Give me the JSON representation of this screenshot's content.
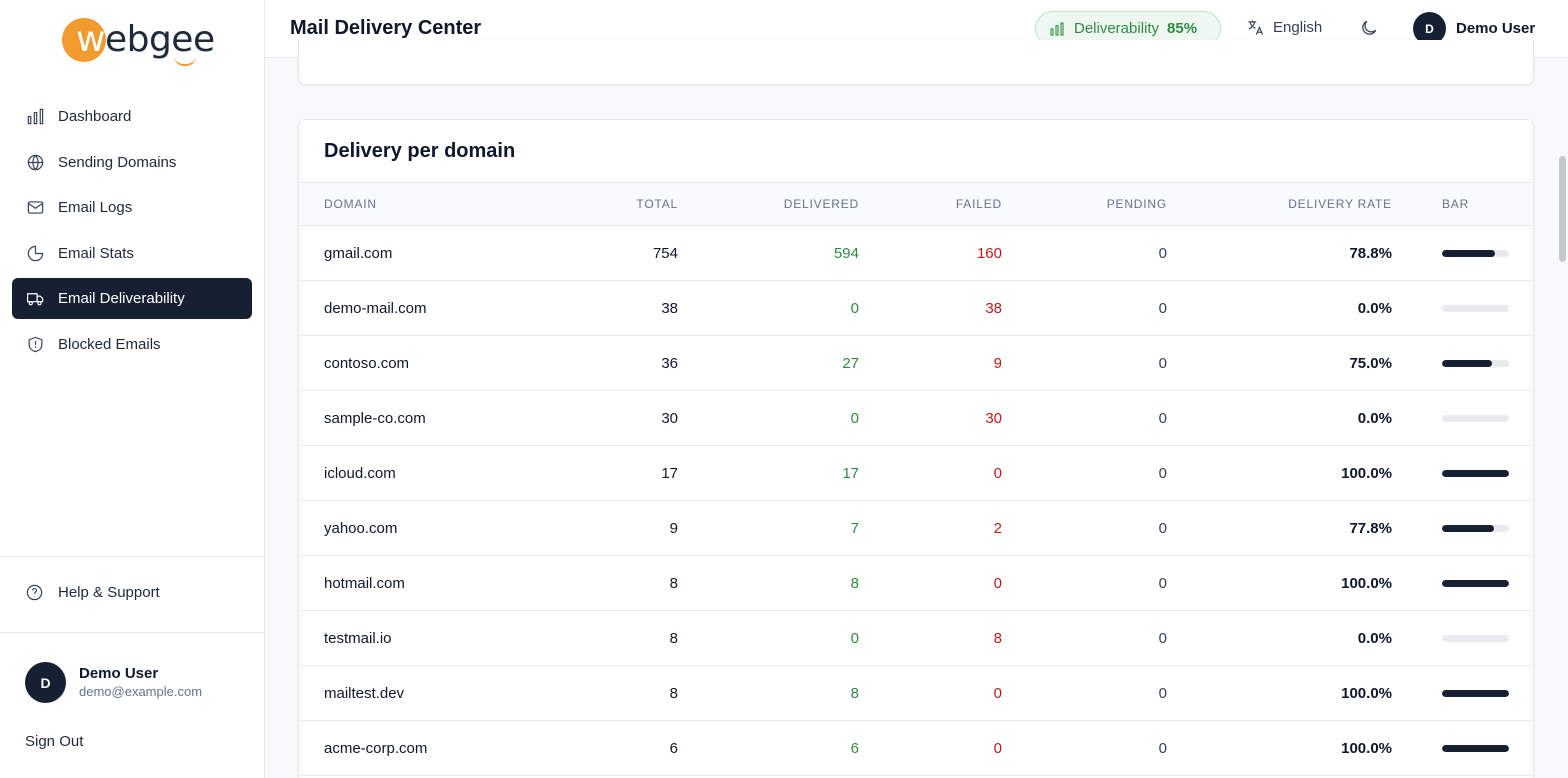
{
  "app": {
    "logo_text": "webgee",
    "title": "Mail Delivery Center"
  },
  "sidebar": {
    "items": [
      {
        "label": "Dashboard",
        "icon": "bar-chart-icon",
        "active": false
      },
      {
        "label": "Sending Domains",
        "icon": "globe-icon",
        "active": false
      },
      {
        "label": "Email Logs",
        "icon": "mail-icon",
        "active": false
      },
      {
        "label": "Email Stats",
        "icon": "pie-chart-icon",
        "active": false
      },
      {
        "label": "Email Deliverability",
        "icon": "truck-icon",
        "active": true
      },
      {
        "label": "Blocked Emails",
        "icon": "shield-icon",
        "active": false
      }
    ],
    "help_label": "Help & Support",
    "user": {
      "initial": "D",
      "name": "Demo User",
      "email": "demo@example.com"
    },
    "signout_label": "Sign Out"
  },
  "header": {
    "deliverability_label": "Deliverability",
    "deliverability_value": "85%",
    "language": "English",
    "user": {
      "initial": "D",
      "name": "Demo User"
    }
  },
  "colors": {
    "accent": "#f19a2e",
    "nav_active": "#172033",
    "success": "#2f8a44",
    "danger": "#b91c1c"
  },
  "domain_table": {
    "title": "Delivery per domain",
    "columns": [
      "Domain",
      "Total",
      "Delivered",
      "Failed",
      "Pending",
      "Delivery rate",
      "Bar"
    ],
    "rows": [
      {
        "domain": "gmail.com",
        "total": "754",
        "delivered": "594",
        "failed": "160",
        "pending": "0",
        "rate": "78.8%",
        "rate_value": 0.788
      },
      {
        "domain": "demo-mail.com",
        "total": "38",
        "delivered": "0",
        "failed": "38",
        "pending": "0",
        "rate": "0.0%",
        "rate_value": 0
      },
      {
        "domain": "contoso.com",
        "total": "36",
        "delivered": "27",
        "failed": "9",
        "pending": "0",
        "rate": "75.0%",
        "rate_value": 0.75
      },
      {
        "domain": "sample-co.com",
        "total": "30",
        "delivered": "0",
        "failed": "30",
        "pending": "0",
        "rate": "0.0%",
        "rate_value": 0
      },
      {
        "domain": "icloud.com",
        "total": "17",
        "delivered": "17",
        "failed": "0",
        "pending": "0",
        "rate": "100.0%",
        "rate_value": 1
      },
      {
        "domain": "yahoo.com",
        "total": "9",
        "delivered": "7",
        "failed": "2",
        "pending": "0",
        "rate": "77.8%",
        "rate_value": 0.778
      },
      {
        "domain": "hotmail.com",
        "total": "8",
        "delivered": "8",
        "failed": "0",
        "pending": "0",
        "rate": "100.0%",
        "rate_value": 1
      },
      {
        "domain": "testmail.io",
        "total": "8",
        "delivered": "0",
        "failed": "8",
        "pending": "0",
        "rate": "0.0%",
        "rate_value": 0
      },
      {
        "domain": "mailtest.dev",
        "total": "8",
        "delivered": "8",
        "failed": "0",
        "pending": "0",
        "rate": "100.0%",
        "rate_value": 1
      },
      {
        "domain": "acme-corp.com",
        "total": "6",
        "delivered": "6",
        "failed": "0",
        "pending": "0",
        "rate": "100.0%",
        "rate_value": 1
      }
    ]
  }
}
